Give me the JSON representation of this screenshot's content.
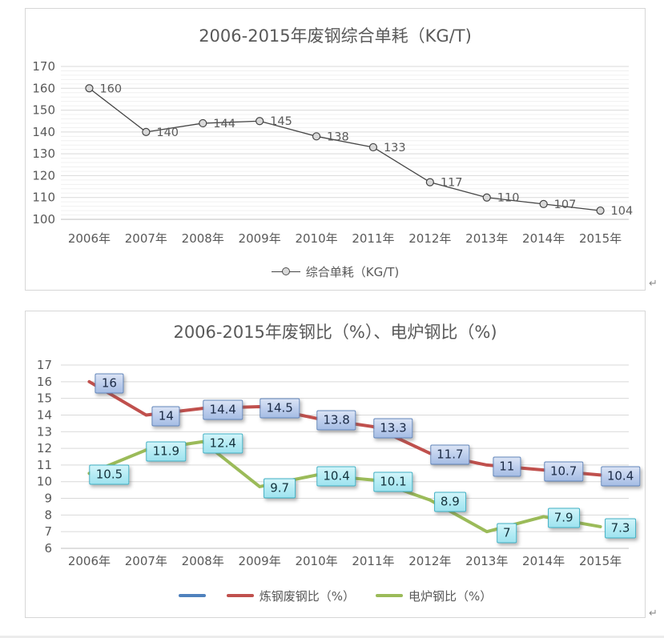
{
  "page": {
    "return_mark": "↵"
  },
  "colors": {
    "grid_major": "#d9d9d9",
    "grid_minor": "#f0f0f0",
    "axis_line": "#bfbfbf",
    "tick_text": "#595959",
    "title_text": "#595959",
    "series_gray": "#454545",
    "series_blue": "#4F81BD",
    "series_red": "#C0504D",
    "series_green": "#9BBB59",
    "marker_fill": "#d9d9d9"
  },
  "chart_data": [
    {
      "id": "unit-consumption",
      "type": "line",
      "title": "2006-2015年废钢综合单耗（KG/T)",
      "categories": [
        "2006年",
        "2007年",
        "2008年",
        "2009年",
        "2010年",
        "2011年",
        "2012年",
        "2013年",
        "2014年",
        "2015年"
      ],
      "series": [
        {
          "name": "综合单耗（KG/T)",
          "values": [
            160,
            140,
            144,
            145,
            138,
            133,
            117,
            110,
            107,
            104
          ],
          "color": "#454545",
          "marker": {
            "shape": "circle",
            "fill": "#d9d9d9",
            "stroke": "#454545"
          },
          "label_style": "plain"
        }
      ],
      "xlabel": "",
      "ylabel": "",
      "ylim": [
        100,
        170
      ],
      "ytick": 10,
      "minor_ytick": 2,
      "grid": true,
      "data_labels": true,
      "legend_position": "bottom"
    },
    {
      "id": "scrap-ratio",
      "type": "line",
      "title": "2006-2015年废钢比（%）、电炉钢比（%)",
      "categories": [
        "2006年",
        "2007年",
        "2008年",
        "2009年",
        "2010年",
        "2011年",
        "2012年",
        "2013年",
        "2014年",
        "2015年"
      ],
      "series": [
        {
          "name": "",
          "values": [],
          "color": "#4F81BD"
        },
        {
          "name": "炼钢废钢比（%）",
          "values": [
            16,
            14,
            14.4,
            14.5,
            13.8,
            13.3,
            11.7,
            11,
            10.7,
            10.4
          ],
          "color": "#C0504D",
          "label_style": "box-blue"
        },
        {
          "name": "电炉钢比（%）",
          "values": [
            10.5,
            11.9,
            12.4,
            9.7,
            10.4,
            10.1,
            8.9,
            7,
            7.9,
            7.3
          ],
          "color": "#9BBB59",
          "label_style": "box-cyan"
        }
      ],
      "xlabel": "",
      "ylabel": "",
      "ylim": [
        6,
        17
      ],
      "ytick": 1,
      "grid": true,
      "data_labels": true,
      "legend_position": "bottom"
    }
  ]
}
